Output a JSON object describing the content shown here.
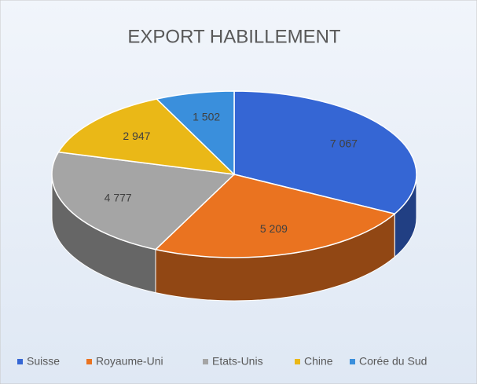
{
  "chart_data": {
    "type": "pie",
    "title": "EXPORT HABILLEMENT",
    "categories": [
      "Suisse",
      "Royaume-Uni",
      "Etats-Unis",
      "Chine",
      "Corée du Sud"
    ],
    "values": [
      7067,
      5209,
      4777,
      2947,
      1502
    ],
    "value_labels": [
      "7 067",
      "5 209",
      "4 777",
      "2 947",
      "1 502"
    ],
    "colors": [
      "#3566d4",
      "#ea7320",
      "#a5a5a5",
      "#eab817",
      "#3a8fdc"
    ],
    "legend": "bottom"
  }
}
